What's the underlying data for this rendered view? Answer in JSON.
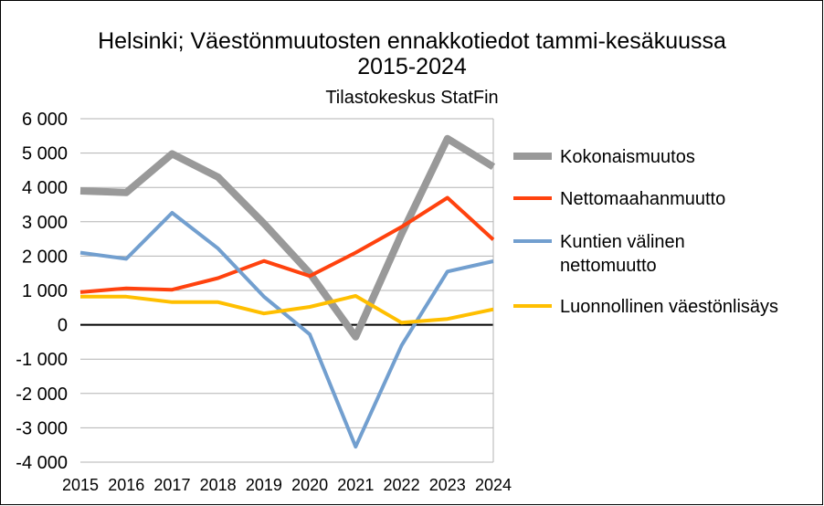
{
  "chart_data": {
    "type": "line",
    "title_line1": "Helsinki; Väestönmuutosten ennakkotiedot tammi-kesäkuussa",
    "title_line2": "2015-2024",
    "subtitle": "Tilastokeskus StatFin",
    "xlabel": "",
    "ylabel": "",
    "ylim": [
      -4000,
      6000
    ],
    "y_ticks": [
      {
        "value": 6000,
        "label": "6 000"
      },
      {
        "value": 5000,
        "label": "5 000"
      },
      {
        "value": 4000,
        "label": "4 000"
      },
      {
        "value": 3000,
        "label": "3 000"
      },
      {
        "value": 2000,
        "label": "2 000"
      },
      {
        "value": 1000,
        "label": "1 000"
      },
      {
        "value": 0,
        "label": "0"
      },
      {
        "value": -1000,
        "label": "-1 000"
      },
      {
        "value": -2000,
        "label": "-2 000"
      },
      {
        "value": -3000,
        "label": "-3 000"
      },
      {
        "value": -4000,
        "label": "-4 000"
      }
    ],
    "categories": [
      "2015",
      "2016",
      "2017",
      "2018",
      "2019",
      "2020",
      "2021",
      "2022",
      "2023",
      "2024"
    ],
    "grid": true,
    "legend_position": "right",
    "series": [
      {
        "name": "Kokonaismuutos",
        "color": "#999999",
        "values": [
          3900,
          3850,
          4980,
          4300,
          2950,
          1500,
          -350,
          2650,
          5420,
          4600
        ]
      },
      {
        "name": "Nettomaahanmuutto",
        "color": "#ff420e",
        "values": [
          950,
          1060,
          1020,
          1360,
          1860,
          1420,
          2100,
          2850,
          3700,
          2480
        ]
      },
      {
        "name": "Kuntien välinen nettomuutto",
        "legend_lines": [
          "Kuntien välinen",
          "nettomuutto"
        ],
        "color": "#729fcf",
        "values": [
          2100,
          1920,
          3260,
          2220,
          820,
          -280,
          -3550,
          -600,
          1550,
          1850
        ]
      },
      {
        "name": "Luonnollinen väestönlisäys",
        "color": "#ffbf00",
        "values": [
          820,
          820,
          660,
          660,
          330,
          520,
          840,
          60,
          170,
          450
        ]
      }
    ]
  }
}
